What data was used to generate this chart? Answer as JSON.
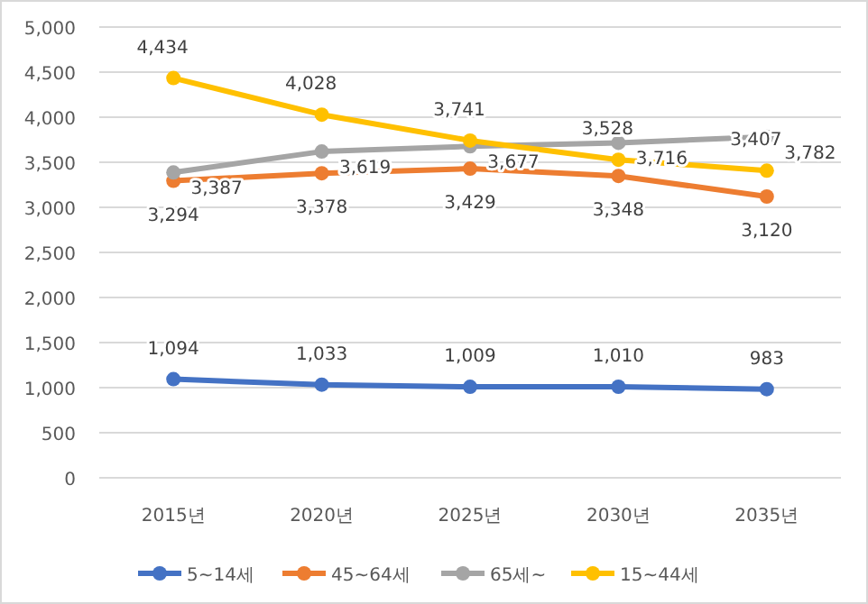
{
  "chart_data": {
    "type": "line",
    "categories": [
      "2015년",
      "2020년",
      "2025년",
      "2030년",
      "2035년"
    ],
    "series": [
      {
        "name": "5~14세",
        "color": "#4472c4",
        "values": [
          1094,
          1033,
          1009,
          1010,
          983
        ],
        "value_labels": [
          "1,094",
          "1,033",
          "1,009",
          "1,010",
          "983"
        ]
      },
      {
        "name": "45~64세",
        "color": "#ed7d31",
        "values": [
          3294,
          3378,
          3429,
          3348,
          3120
        ],
        "value_labels": [
          "3,294",
          "3,378",
          "3,429",
          "3,348",
          "3,120"
        ]
      },
      {
        "name": "65세~",
        "color": "#a5a5a5",
        "values": [
          3387,
          3619,
          3677,
          3716,
          3782
        ],
        "value_labels": [
          "3,387",
          "3,619",
          "3,677",
          "3,716",
          "3,782"
        ]
      },
      {
        "name": "15~44세",
        "color": "#ffc000",
        "values": [
          4434,
          4028,
          3741,
          3528,
          3407
        ],
        "value_labels": [
          "4,434",
          "4,028",
          "3,741",
          "3,528",
          "3,407"
        ]
      }
    ],
    "ylim": [
      0,
      5000
    ],
    "yticks": [
      {
        "value": 0,
        "label": "0"
      },
      {
        "value": 500,
        "label": "500"
      },
      {
        "value": 1000,
        "label": "1,000"
      },
      {
        "value": 1500,
        "label": "1,500"
      },
      {
        "value": 2000,
        "label": "2,000"
      },
      {
        "value": 2500,
        "label": "2,500"
      },
      {
        "value": 3000,
        "label": "3,000"
      },
      {
        "value": 3500,
        "label": "3,500"
      },
      {
        "value": 4000,
        "label": "4,000"
      },
      {
        "value": 4500,
        "label": "4,500"
      },
      {
        "value": 5000,
        "label": "5,000"
      }
    ],
    "grid": "y",
    "legend": "bottom",
    "marker": "circle"
  }
}
